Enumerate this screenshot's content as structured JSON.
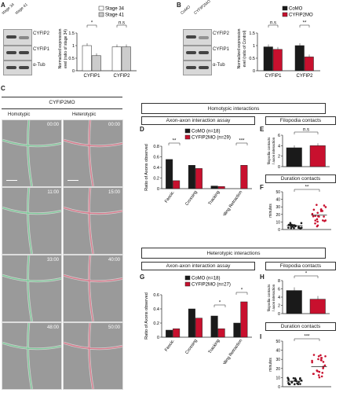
{
  "panels": {
    "A": "A",
    "B": "B",
    "C": "C",
    "D": "D",
    "E": "E",
    "F": "F",
    "G": "G",
    "H": "H",
    "I": "I"
  },
  "colors": {
    "comorpho": "#1a1a1a",
    "cyfip2mo": "#c8102e",
    "stage34": "#ffffff",
    "stage41": "#cccccc"
  },
  "panelA": {
    "blot_lanes": [
      "stage 34",
      "stage 41"
    ],
    "blot_rows": [
      "CYFIP2",
      "CYFIP1",
      "α-Tub"
    ],
    "legend": [
      "Stage 34",
      "Stage 41"
    ],
    "ylabel": "Normalized expression level (ratio of stage 34)",
    "sig": [
      "*",
      "n.s"
    ]
  },
  "panelB": {
    "blot_lanes": [
      "CoMO",
      "CYFIP2MO"
    ],
    "blot_rows": [
      "CYFIP2",
      "CYFIP1",
      "α-Tub"
    ],
    "legend": [
      "CoMO",
      "CYFIP2MO"
    ],
    "ylabel": "Normalized expression level (ratio of Control)",
    "sig": [
      "n.s",
      "**"
    ]
  },
  "panelC": {
    "title": "CYFIP2MO",
    "col_headers": [
      "Homotypic",
      "Heterotypic"
    ],
    "timestamps": [
      "00:00",
      "00:00",
      "11:00",
      "15:00",
      "33:00",
      "40:00",
      "48:00",
      "50:00"
    ]
  },
  "homotypic": {
    "header": "Homotypic interactions",
    "assay": "Axon-axon interaction assay",
    "filo": "Filopodia contacts",
    "dur": "Duration contacts",
    "legend": [
      "CoMO (n=18)",
      "CYFIP2MO (n=29)"
    ],
    "d_ylabel": "Ratio of Axons observed",
    "e_ylabel": "filopodia contacts / axon interaction",
    "f_ylabel": "minutes",
    "sig_d": [
      "**",
      "***"
    ],
    "sig_e": "n.s",
    "sig_f": "**"
  },
  "heterotypic": {
    "header": "Heterotypic interactions",
    "assay": "Axon-axon interaction assay",
    "filo": "Filopodia contacts",
    "dur": "Duration contacts",
    "legend": [
      "CoMO (n=18)",
      "CYFIP2MO (n=27)"
    ],
    "g_ylabel": "Ratio of Axons observed",
    "h_ylabel": "filopodia contacts / axon interaction",
    "i_ylabel": "minutes",
    "sig_g": [
      "*",
      "*"
    ],
    "sig_h": "*",
    "sig_i": "***"
  },
  "chart_data": [
    {
      "id": "A",
      "type": "bar",
      "categories": [
        "CYFIP1",
        "CYFIP2"
      ],
      "series": [
        {
          "name": "Stage 34",
          "values": [
            1.0,
            0.95
          ]
        },
        {
          "name": "Stage 41",
          "values": [
            0.6,
            0.95
          ]
        }
      ],
      "ylim": [
        0,
        1.5
      ],
      "yticks": [
        "0",
        "0.5",
        "1",
        "1.5"
      ]
    },
    {
      "id": "B",
      "type": "bar",
      "categories": [
        "CYFIP1",
        "CYFIP2"
      ],
      "series": [
        {
          "name": "CoMO",
          "values": [
            0.95,
            1.0
          ]
        },
        {
          "name": "CYFIP2MO",
          "values": [
            0.85,
            0.55
          ]
        }
      ],
      "ylim": [
        0,
        1.5
      ],
      "yticks": [
        "0",
        "0.5",
        "1",
        "1.5"
      ]
    },
    {
      "id": "D",
      "type": "bar",
      "categories": [
        "Fascic.",
        "Crossing",
        "Tracking",
        "Stalling Retraction"
      ],
      "series": [
        {
          "name": "CoMO (n=18)",
          "values": [
            0.55,
            0.44,
            0.05,
            0.0
          ]
        },
        {
          "name": "CYFIP2MO (n=29)",
          "values": [
            0.15,
            0.38,
            0.04,
            0.44
          ]
        }
      ],
      "ylim": [
        0,
        0.8
      ],
      "yticks": [
        "0",
        "0.2",
        "0.4",
        "0.6",
        "0.8"
      ]
    },
    {
      "id": "E",
      "type": "bar",
      "categories": [
        "CoMO",
        "CYFIP2MO"
      ],
      "values": [
        3.6,
        4.0
      ],
      "ylim": [
        0,
        6
      ],
      "yticks": [
        "0",
        "2",
        "4",
        "6"
      ]
    },
    {
      "id": "F",
      "type": "scatter",
      "categories": [
        "CoMO",
        "CYFIP2MO"
      ],
      "means": [
        5,
        19
      ],
      "ylim": [
        0,
        50
      ],
      "yticks": [
        "0",
        "10",
        "20",
        "30",
        "40",
        "50"
      ]
    },
    {
      "id": "G",
      "type": "bar",
      "categories": [
        "Fascic.",
        "Crossing",
        "Tracking",
        "Stalling Retraction"
      ],
      "series": [
        {
          "name": "CoMO (n=18)",
          "values": [
            0.1,
            0.4,
            0.3,
            0.2
          ]
        },
        {
          "name": "CYFIP2MO (n=27)",
          "values": [
            0.12,
            0.27,
            0.12,
            0.5
          ]
        }
      ],
      "ylim": [
        0,
        0.6
      ],
      "yticks": [
        "0",
        "0.2",
        "0.4",
        "0.6"
      ]
    },
    {
      "id": "H",
      "type": "bar",
      "categories": [
        "CoMO",
        "CYFIP2MO"
      ],
      "values": [
        5.6,
        3.5
      ],
      "ylim": [
        0,
        8
      ],
      "yticks": [
        "0",
        "2",
        "4",
        "6",
        "8"
      ]
    },
    {
      "id": "I",
      "type": "scatter",
      "categories": [
        "CoMO",
        "CYFIP2MO"
      ],
      "means": [
        6,
        22
      ],
      "ylim": [
        0,
        50
      ],
      "yticks": [
        "0",
        "10",
        "20",
        "30",
        "40",
        "50"
      ]
    }
  ]
}
